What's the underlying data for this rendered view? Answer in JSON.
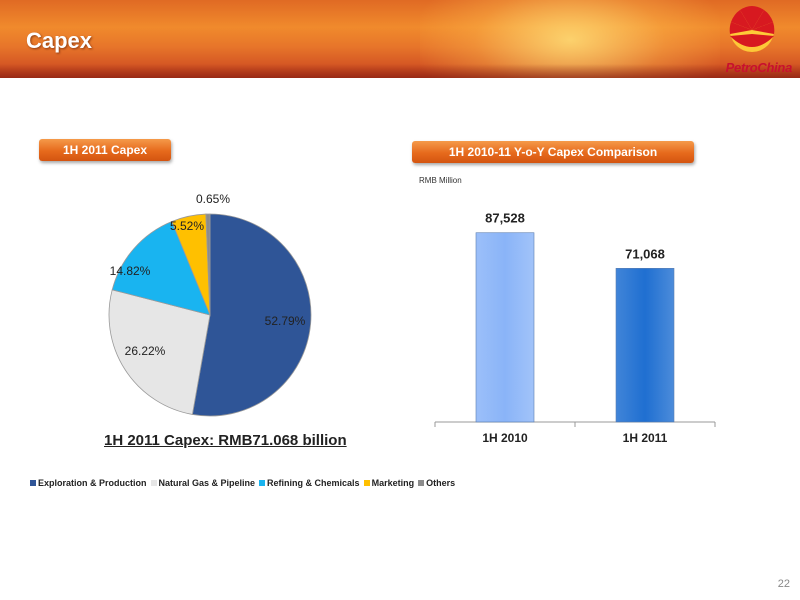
{
  "header": {
    "title": "Capex",
    "logo_text": "PetroChina"
  },
  "left_panel": {
    "pill": "1H 2011 Capex",
    "caption": "1H 2011 Capex: RMB71.068 billion"
  },
  "right_panel": {
    "pill": "1H 2010-11 Y-o-Y Capex Comparison",
    "unit": "RMB Million"
  },
  "page_number": "22",
  "chart_data": [
    {
      "type": "pie",
      "title": "1H 2011 Capex",
      "labels": [
        "Exploration & Production",
        "Natural Gas & Pipeline",
        "Refining & Chemicals",
        "Marketing",
        "Others"
      ],
      "values": [
        52.79,
        26.22,
        14.82,
        5.52,
        0.65
      ],
      "value_labels": [
        "52.79%",
        "26.22%",
        "14.82%",
        "5.52%",
        "0.65%"
      ],
      "colors": [
        "#2f5597",
        "#e6e6e6",
        "#19b4f0",
        "#ffc000",
        "#8c8c8c"
      ],
      "legend": "bottom"
    },
    {
      "type": "bar",
      "title": "1H 2010-11 Y-o-Y Capex Comparison",
      "ylabel": "RMB Million",
      "categories": [
        "1H 2010",
        "1H 2011"
      ],
      "values": [
        87528,
        71068
      ],
      "value_labels": [
        "87,528",
        "71,068"
      ],
      "colors": [
        "#8ab4f8",
        "#1f6fd1"
      ],
      "ylim": [
        0,
        100000
      ],
      "grid": false,
      "legend": "none"
    }
  ]
}
